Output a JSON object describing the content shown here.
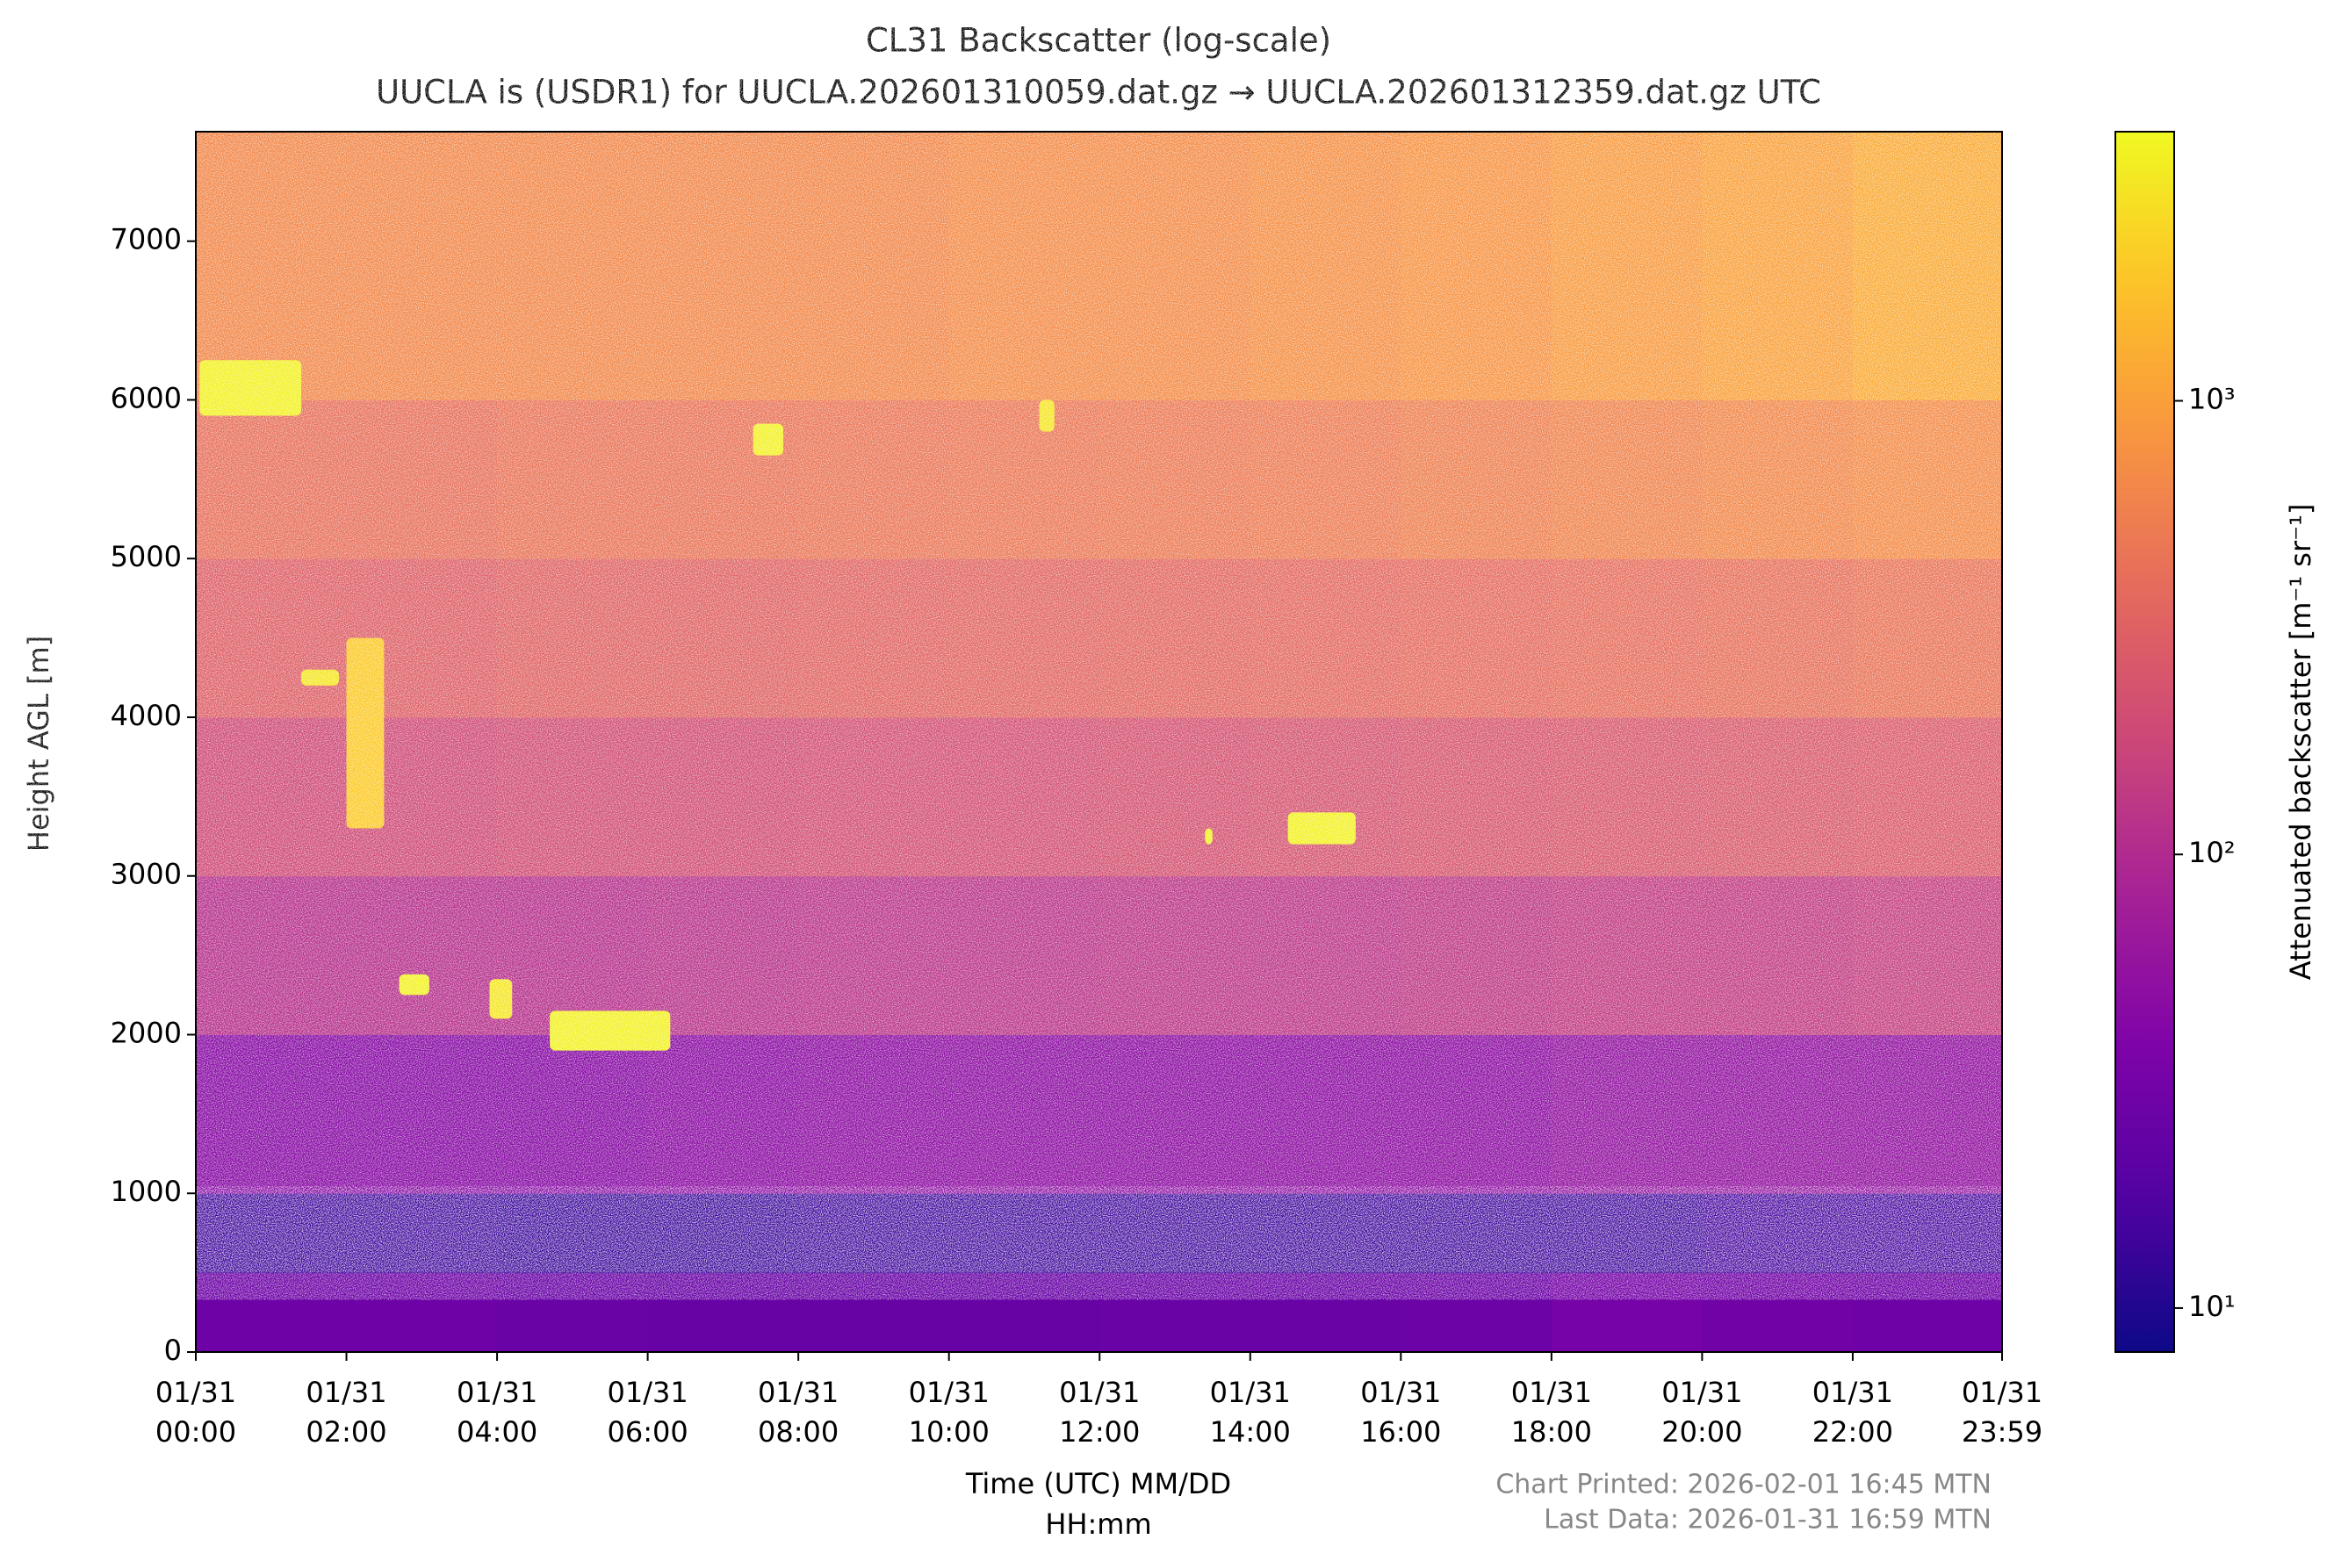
{
  "chart_data": {
    "type": "heatmap",
    "title": "CL31 Backscatter (log-scale)",
    "subtitle": "UUCLA is (USDR1) for UUCLA.202601310059.dat.gz → UUCLA.202601312359.dat.gz UTC",
    "x_label": [
      "Time (UTC) MM/DD",
      "HH:mm"
    ],
    "y_label": "Height AGL [m]",
    "notes": [
      "Chart Printed: 2026-02-01 16:45 MTN",
      "Last Data: 2026-01-31 16:59 MTN"
    ],
    "xlim": [
      0,
      23.983
    ],
    "xticks": [
      {
        "value": 0,
        "label": "01/31\n00:00"
      },
      {
        "value": 2,
        "label": "01/31\n02:00"
      },
      {
        "value": 4,
        "label": "01/31\n04:00"
      },
      {
        "value": 6,
        "label": "01/31\n06:00"
      },
      {
        "value": 8,
        "label": "01/31\n08:00"
      },
      {
        "value": 10,
        "label": "01/31\n10:00"
      },
      {
        "value": 12,
        "label": "01/31\n12:00"
      },
      {
        "value": 14,
        "label": "01/31\n14:00"
      },
      {
        "value": 16,
        "label": "01/31\n16:00"
      },
      {
        "value": 18,
        "label": "01/31\n18:00"
      },
      {
        "value": 20,
        "label": "01/31\n20:00"
      },
      {
        "value": 22,
        "label": "01/31\n22:00"
      },
      {
        "value": 23.983,
        "label": "01/31\n23:59"
      }
    ],
    "ylim": [
      0,
      7690
    ],
    "yticks": [
      0,
      1000,
      2000,
      3000,
      4000,
      5000,
      6000,
      7000
    ],
    "x_edges": [
      0,
      2,
      4,
      6,
      8,
      10,
      12,
      14,
      16,
      18,
      20,
      22,
      23.983
    ],
    "y_edges": [
      0,
      500,
      1000,
      2000,
      3000,
      4000,
      5000,
      6000,
      7690
    ],
    "z": [
      [
        28,
        28,
        26,
        25,
        25,
        25,
        26,
        26,
        27,
        32,
        30,
        28
      ],
      [
        14,
        14,
        13,
        13,
        14,
        14,
        14,
        14,
        14,
        14,
        15,
        15
      ],
      [
        45,
        45,
        45,
        48,
        50,
        50,
        50,
        50,
        50,
        55,
        55,
        55
      ],
      [
        110,
        110,
        110,
        115,
        120,
        120,
        125,
        125,
        130,
        140,
        140,
        150
      ],
      [
        190,
        190,
        200,
        200,
        210,
        210,
        220,
        230,
        240,
        250,
        260,
        270
      ],
      [
        300,
        300,
        320,
        320,
        330,
        340,
        350,
        360,
        380,
        400,
        420,
        450
      ],
      [
        420,
        420,
        450,
        450,
        470,
        480,
        500,
        520,
        560,
        600,
        650,
        700
      ],
      [
        650,
        650,
        650,
        650,
        650,
        700,
        700,
        750,
        800,
        900,
        1000,
        1200
      ]
    ],
    "clouds": [
      [
        0.05,
        1.4,
        5900,
        6250,
        3500
      ],
      [
        1.4,
        1.9,
        4200,
        4300,
        3000
      ],
      [
        2.0,
        2.5,
        3300,
        4500,
        2000
      ],
      [
        2.7,
        3.1,
        2250,
        2380,
        3500
      ],
      [
        3.9,
        4.2,
        2100,
        2350,
        3000
      ],
      [
        4.7,
        6.3,
        1900,
        2150,
        3500
      ],
      [
        7.4,
        7.8,
        5650,
        5850,
        3500
      ],
      [
        11.2,
        11.4,
        5800,
        6000,
        3000
      ],
      [
        13.4,
        13.5,
        3200,
        3300,
        3500
      ],
      [
        14.5,
        15.4,
        3200,
        3400,
        3500
      ]
    ],
    "colorbar": {
      "label": "Attenuated backscatter [m⁻¹ sr⁻¹]",
      "log": true,
      "colormap": "plasma",
      "lim": [
        8,
        3920
      ],
      "ticks": [
        {
          "value": 10,
          "label": "10¹"
        },
        {
          "value": 100,
          "label": "10²"
        },
        {
          "value": 1000,
          "label": "10³"
        }
      ]
    }
  }
}
